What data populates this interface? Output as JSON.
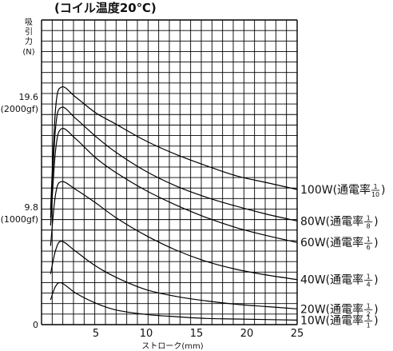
{
  "chart_data": {
    "type": "line",
    "title": "(コイル温度20℃)",
    "xlabel": "ストローク(mm)",
    "ylabel_chars": [
      "吸",
      "引",
      "力",
      "(N)"
    ],
    "xlim": [
      -0.4,
      25
    ],
    "ylim": [
      0,
      27.05
    ],
    "x_ticks": [
      {
        "value": 5,
        "label": "5"
      },
      {
        "value": 10,
        "label": "10"
      },
      {
        "value": 15,
        "label": "15"
      },
      {
        "value": 20,
        "label": "20"
      },
      {
        "value": 25,
        "label": "25"
      }
    ],
    "y_ticks": [
      {
        "value": 0,
        "label": "0",
        "sub": ""
      },
      {
        "value": 9.8,
        "label": "9.8",
        "sub": "(1000gf)"
      },
      {
        "value": 19.6,
        "label": "19.6",
        "sub": "(2000gf)"
      }
    ],
    "grid": true,
    "series": [
      {
        "name": "100W",
        "duty": "通電率",
        "num": "1",
        "den": "10",
        "x": [
          0.5,
          1.0,
          1.6,
          3,
          5,
          7,
          10,
          13,
          16,
          19,
          22,
          25
        ],
        "y": [
          10.2,
          19.2,
          21.1,
          20.2,
          18.8,
          17.8,
          16.3,
          15.1,
          14.1,
          13.2,
          12.6,
          12.0
        ]
      },
      {
        "name": "80W",
        "duty": "通電率",
        "num": "1",
        "den": "8",
        "x": [
          0.5,
          1.0,
          1.6,
          3,
          5,
          7,
          10,
          13,
          16,
          19,
          22,
          25
        ],
        "y": [
          9.5,
          17.5,
          19.3,
          18.3,
          16.7,
          15.3,
          13.6,
          12.3,
          11.3,
          10.5,
          9.8,
          9.2
        ]
      },
      {
        "name": "60W",
        "duty": "通電率",
        "num": "1",
        "den": "6",
        "x": [
          0.5,
          1.0,
          1.6,
          3,
          5,
          7,
          10,
          13,
          16,
          19,
          22,
          25
        ],
        "y": [
          8.8,
          15.5,
          17.4,
          16.5,
          14.8,
          13.5,
          11.9,
          10.6,
          9.5,
          8.6,
          7.9,
          7.3
        ]
      },
      {
        "name": "40W",
        "duty": "通電率",
        "num": "1",
        "den": "4",
        "x": [
          0.5,
          1.0,
          1.6,
          3,
          5,
          7,
          10,
          13,
          16,
          19,
          22,
          25
        ],
        "y": [
          7.0,
          11.6,
          12.7,
          12.0,
          10.8,
          9.5,
          7.9,
          6.6,
          5.6,
          4.9,
          4.4,
          4.0
        ]
      },
      {
        "name": "20W",
        "duty": "通電率",
        "num": "1",
        "den": "2",
        "x": [
          0.5,
          1.0,
          1.6,
          3,
          5,
          7,
          10,
          13,
          16,
          19,
          22,
          25
        ],
        "y": [
          4.5,
          6.6,
          7.4,
          6.5,
          5.2,
          4.2,
          3.1,
          2.5,
          2.1,
          1.8,
          1.6,
          1.4
        ]
      },
      {
        "name": "10W",
        "duty": "通電率",
        "num": "1",
        "den": "1",
        "x": [
          0.5,
          1.0,
          1.6,
          3,
          5,
          7,
          10,
          13,
          16,
          19,
          22,
          25
        ],
        "y": [
          2.2,
          3.4,
          3.7,
          2.8,
          1.9,
          1.3,
          0.9,
          0.7,
          0.55,
          0.5,
          0.45,
          0.4
        ]
      }
    ]
  }
}
